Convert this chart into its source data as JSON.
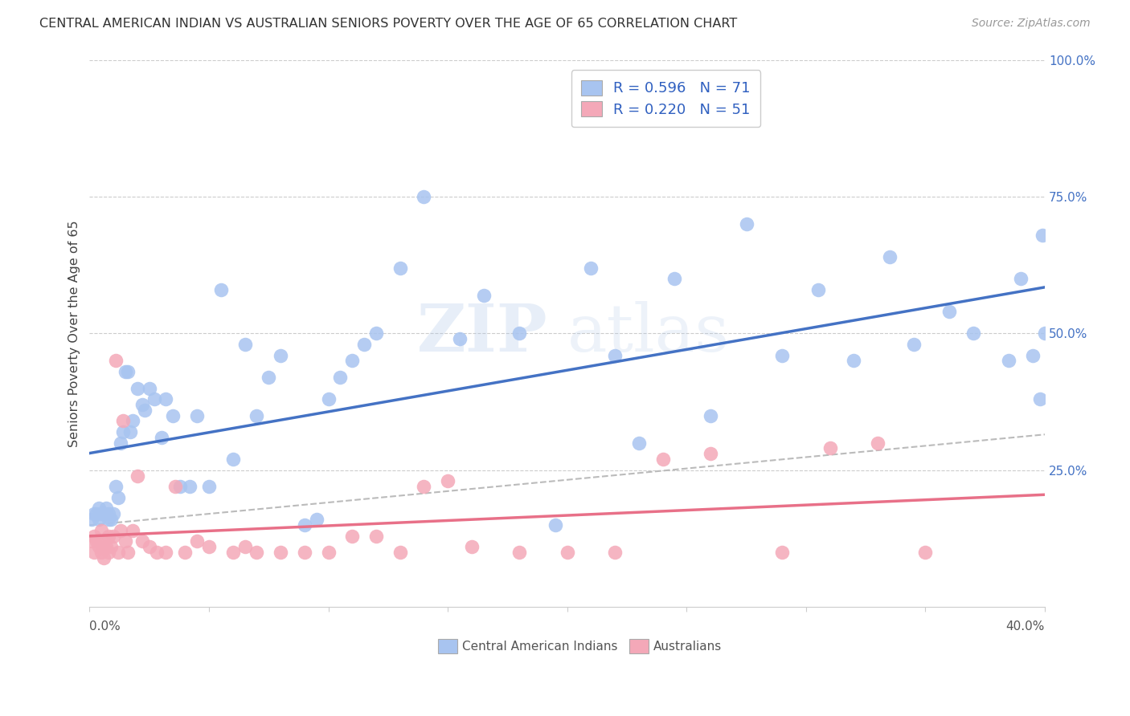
{
  "title": "CENTRAL AMERICAN INDIAN VS AUSTRALIAN SENIORS POVERTY OVER THE AGE OF 65 CORRELATION CHART",
  "source": "Source: ZipAtlas.com",
  "ylabel": "Seniors Poverty Over the Age of 65",
  "xlim": [
    0.0,
    0.4
  ],
  "ylim": [
    0.0,
    1.0
  ],
  "ytick_vals": [
    0.25,
    0.5,
    0.75,
    1.0
  ],
  "ytick_labels": [
    "25.0%",
    "50.0%",
    "75.0%",
    "100.0%"
  ],
  "xtick_vals": [
    0.0,
    0.05,
    0.1,
    0.15,
    0.2,
    0.25,
    0.3,
    0.35,
    0.4
  ],
  "r_blue": "0.596",
  "n_blue": "71",
  "r_pink": "0.220",
  "n_pink": "51",
  "blue_scatter_color": "#A8C4F0",
  "pink_scatter_color": "#F4A8B8",
  "blue_line_color": "#4472C4",
  "pink_line_color": "#E87088",
  "gray_dash_color": "#BBBBBB",
  "legend_text_color": "#3060C0",
  "axis_label_color": "#555555",
  "right_axis_color": "#4472C4",
  "legend_label_blue": "Central American Indians",
  "legend_label_pink": "Australians",
  "blue_x": [
    0.001,
    0.002,
    0.003,
    0.004,
    0.005,
    0.006,
    0.007,
    0.008,
    0.009,
    0.01,
    0.011,
    0.012,
    0.013,
    0.014,
    0.015,
    0.016,
    0.017,
    0.018,
    0.02,
    0.022,
    0.023,
    0.025,
    0.027,
    0.03,
    0.032,
    0.035,
    0.038,
    0.042,
    0.045,
    0.05,
    0.055,
    0.06,
    0.065,
    0.07,
    0.075,
    0.08,
    0.09,
    0.095,
    0.1,
    0.105,
    0.11,
    0.115,
    0.12,
    0.13,
    0.14,
    0.155,
    0.165,
    0.18,
    0.195,
    0.21,
    0.22,
    0.23,
    0.245,
    0.26,
    0.275,
    0.29,
    0.305,
    0.32,
    0.335,
    0.345,
    0.36,
    0.37,
    0.385,
    0.39,
    0.395,
    0.398,
    0.399,
    0.004,
    0.006,
    0.008,
    0.4
  ],
  "blue_y": [
    0.16,
    0.17,
    0.17,
    0.16,
    0.17,
    0.17,
    0.18,
    0.17,
    0.16,
    0.17,
    0.22,
    0.2,
    0.3,
    0.32,
    0.43,
    0.43,
    0.32,
    0.34,
    0.4,
    0.37,
    0.36,
    0.4,
    0.38,
    0.31,
    0.38,
    0.35,
    0.22,
    0.22,
    0.35,
    0.22,
    0.58,
    0.27,
    0.48,
    0.35,
    0.42,
    0.46,
    0.15,
    0.16,
    0.38,
    0.42,
    0.45,
    0.48,
    0.5,
    0.62,
    0.75,
    0.49,
    0.57,
    0.5,
    0.15,
    0.62,
    0.46,
    0.3,
    0.6,
    0.35,
    0.7,
    0.46,
    0.58,
    0.45,
    0.64,
    0.48,
    0.54,
    0.5,
    0.45,
    0.6,
    0.46,
    0.38,
    0.68,
    0.18,
    0.17,
    0.16,
    0.5
  ],
  "pink_x": [
    0.001,
    0.002,
    0.003,
    0.004,
    0.005,
    0.005,
    0.006,
    0.006,
    0.007,
    0.008,
    0.008,
    0.009,
    0.01,
    0.011,
    0.012,
    0.013,
    0.014,
    0.015,
    0.016,
    0.018,
    0.02,
    0.022,
    0.025,
    0.028,
    0.032,
    0.036,
    0.04,
    0.045,
    0.05,
    0.06,
    0.065,
    0.07,
    0.08,
    0.09,
    0.1,
    0.11,
    0.12,
    0.13,
    0.14,
    0.15,
    0.16,
    0.18,
    0.2,
    0.22,
    0.24,
    0.26,
    0.29,
    0.31,
    0.33,
    0.35,
    0.002
  ],
  "pink_y": [
    0.12,
    0.13,
    0.12,
    0.11,
    0.1,
    0.14,
    0.09,
    0.12,
    0.11,
    0.1,
    0.13,
    0.11,
    0.13,
    0.45,
    0.1,
    0.14,
    0.34,
    0.12,
    0.1,
    0.14,
    0.24,
    0.12,
    0.11,
    0.1,
    0.1,
    0.22,
    0.1,
    0.12,
    0.11,
    0.1,
    0.11,
    0.1,
    0.1,
    0.1,
    0.1,
    0.13,
    0.13,
    0.1,
    0.22,
    0.23,
    0.11,
    0.1,
    0.1,
    0.1,
    0.27,
    0.28,
    0.1,
    0.29,
    0.3,
    0.1,
    0.1
  ]
}
